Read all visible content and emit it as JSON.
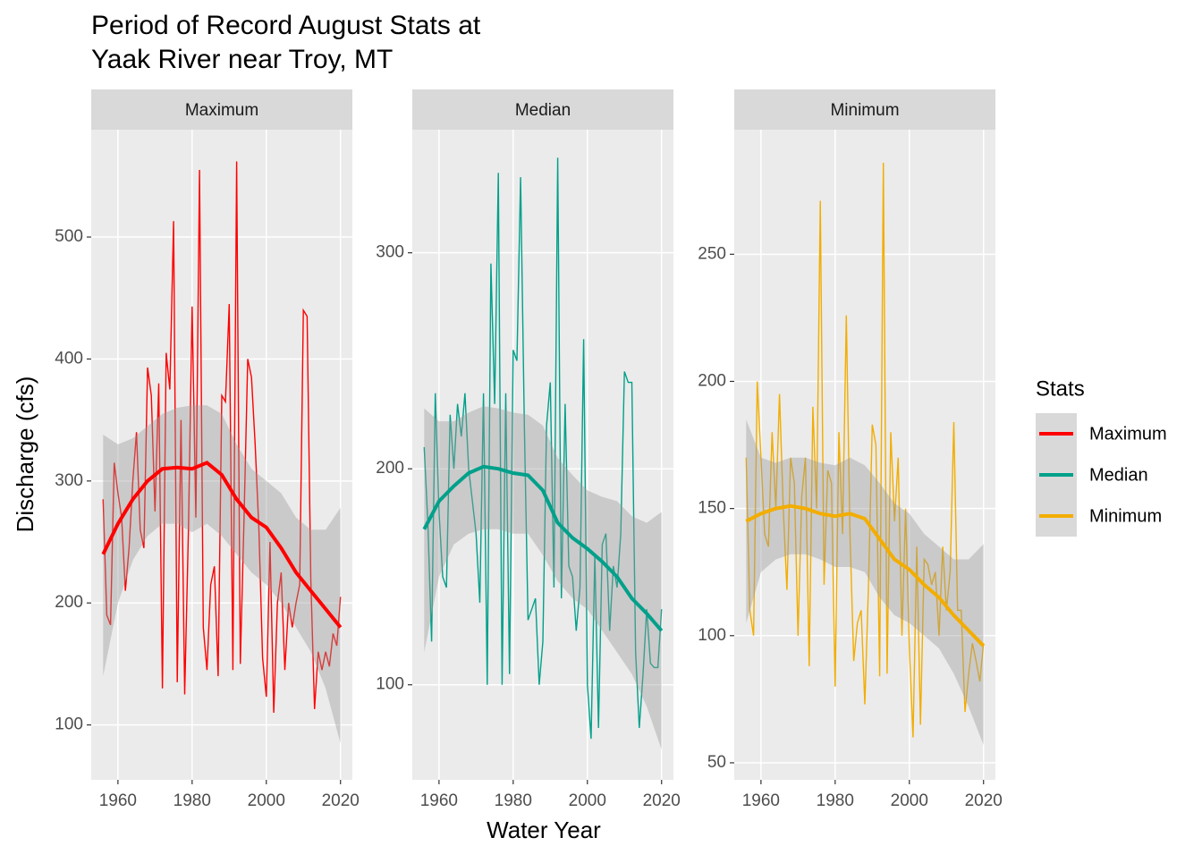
{
  "chart_data": {
    "type": "line",
    "title": [
      "Period of Record August Stats at",
      "Yaak River near Troy, MT"
    ],
    "x_label": "Water Year",
    "y_label": "Discharge (cfs)",
    "legend_title": "Stats",
    "panels": [
      {
        "title": "Maximum",
        "xlim": [
          1952.8,
          2023.2
        ],
        "xticks": [
          1960,
          1980,
          2000,
          2020
        ],
        "ylim": [
          55,
          588
        ],
        "yticks": [
          100,
          200,
          300,
          400,
          500
        ],
        "x": [
          1956,
          1957,
          1958,
          1959,
          1960,
          1961,
          1962,
          1963,
          1964,
          1965,
          1966,
          1967,
          1968,
          1969,
          1970,
          1971,
          1972,
          1973,
          1974,
          1975,
          1976,
          1977,
          1978,
          1979,
          1980,
          1981,
          1982,
          1983,
          1984,
          1985,
          1986,
          1987,
          1988,
          1989,
          1990,
          1991,
          1992,
          1993,
          1994,
          1995,
          1996,
          1997,
          1998,
          1999,
          2000,
          2001,
          2002,
          2003,
          2004,
          2005,
          2006,
          2007,
          2008,
          2009,
          2010,
          2011,
          2012,
          2013,
          2014,
          2015,
          2016,
          2017,
          2018,
          2019,
          2020
        ],
        "series": [
          {
            "name": "Maximum",
            "color": "#ff0000",
            "values": [
              285,
              190,
              182,
              315,
              290,
              270,
              210,
              245,
              300,
              340,
              260,
              245,
              393,
              370,
              275,
              380,
              130,
              405,
              375,
              513,
              135,
              350,
              125,
              260,
              443,
              270,
              555,
              180,
              145,
              215,
              230,
              140,
              370,
              365,
              445,
              145,
              562,
              150,
              270,
              400,
              385,
              330,
              260,
              155,
              123,
              250,
              110,
              200,
              225,
              145,
              200,
              180,
              200,
              215,
              440,
              435,
              220,
              113,
              160,
              145,
              160,
              148,
              175,
              165,
              205
            ]
          }
        ],
        "smooth": {
          "x": [
            1956,
            1960,
            1964,
            1968,
            1972,
            1976,
            1980,
            1984,
            1988,
            1992,
            1996,
            2000,
            2004,
            2008,
            2012,
            2016,
            2020
          ],
          "values": [
            240,
            265,
            285,
            300,
            310,
            311,
            310,
            315,
            305,
            285,
            270,
            262,
            245,
            225,
            210,
            195,
            180
          ],
          "lower": [
            140,
            200,
            235,
            255,
            265,
            265,
            258,
            265,
            255,
            240,
            225,
            215,
            200,
            180,
            160,
            130,
            85
          ],
          "upper": [
            338,
            330,
            335,
            345,
            355,
            360,
            362,
            362,
            355,
            330,
            310,
            300,
            290,
            270,
            260,
            260,
            278
          ]
        }
      },
      {
        "title": "Median",
        "xlim": [
          1952.8,
          2023.2
        ],
        "xticks": [
          1960,
          1980,
          2000,
          2020
        ],
        "ylim": [
          56,
          357
        ],
        "yticks": [
          100,
          200,
          300
        ],
        "x": [
          1956,
          1957,
          1958,
          1959,
          1960,
          1961,
          1962,
          1963,
          1964,
          1965,
          1966,
          1967,
          1968,
          1969,
          1970,
          1971,
          1972,
          1973,
          1974,
          1975,
          1976,
          1977,
          1978,
          1979,
          1980,
          1981,
          1982,
          1983,
          1984,
          1985,
          1986,
          1987,
          1988,
          1989,
          1990,
          1991,
          1992,
          1993,
          1994,
          1995,
          1996,
          1997,
          1998,
          1999,
          2000,
          2001,
          2002,
          2003,
          2004,
          2005,
          2006,
          2007,
          2008,
          2009,
          2010,
          2011,
          2012,
          2013,
          2014,
          2015,
          2016,
          2017,
          2018,
          2019,
          2020
        ],
        "series": [
          {
            "name": "Median",
            "color": "#00a08a",
            "values": [
              210,
              175,
              120,
              235,
              180,
              150,
              145,
              225,
              200,
              230,
              215,
              235,
              200,
              185,
              170,
              138,
              235,
              100,
              295,
              230,
              337,
              100,
              235,
              105,
              255,
              250,
              335,
              220,
              130,
              135,
              140,
              100,
              120,
              220,
              240,
              145,
              344,
              140,
              230,
              155,
              150,
              125,
              145,
              260,
              100,
              75,
              160,
              80,
              165,
              170,
              125,
              155,
              145,
              170,
              245,
              240,
              240,
              115,
              80,
              105,
              135,
              110,
              108,
              108,
              135
            ]
          }
        ],
        "smooth": {
          "x": [
            1956,
            1960,
            1964,
            1968,
            1972,
            1976,
            1980,
            1984,
            1988,
            1992,
            1996,
            2000,
            2004,
            2008,
            2012,
            2016,
            2020
          ],
          "values": [
            172,
            185,
            192,
            198,
            201,
            200,
            198,
            197,
            190,
            175,
            168,
            163,
            157,
            150,
            140,
            133,
            125
          ],
          "lower": [
            115,
            150,
            165,
            170,
            172,
            172,
            170,
            170,
            160,
            148,
            140,
            135,
            125,
            115,
            105,
            90,
            70
          ],
          "upper": [
            228,
            222,
            222,
            226,
            229,
            228,
            226,
            225,
            220,
            205,
            197,
            190,
            187,
            185,
            178,
            175,
            180
          ]
        }
      },
      {
        "title": "Minimum",
        "xlim": [
          1952.8,
          2023.2
        ],
        "xticks": [
          1960,
          1980,
          2000,
          2020
        ],
        "ylim": [
          43.3,
          299
        ],
        "yticks": [
          50,
          100,
          150,
          200,
          250
        ],
        "x": [
          1956,
          1957,
          1958,
          1959,
          1960,
          1961,
          1962,
          1963,
          1964,
          1965,
          1966,
          1967,
          1968,
          1969,
          1970,
          1971,
          1972,
          1973,
          1974,
          1975,
          1976,
          1977,
          1978,
          1979,
          1980,
          1981,
          1982,
          1983,
          1984,
          1985,
          1986,
          1987,
          1988,
          1989,
          1990,
          1991,
          1992,
          1993,
          1994,
          1995,
          1996,
          1997,
          1998,
          1999,
          2000,
          2001,
          2002,
          2003,
          2004,
          2005,
          2006,
          2007,
          2008,
          2009,
          2010,
          2011,
          2012,
          2013,
          2014,
          2015,
          2016,
          2017,
          2018,
          2019,
          2020
        ],
        "series": [
          {
            "name": "Minimum",
            "color": "#f2ad00",
            "values": [
              170,
              110,
              100,
              200,
              170,
              140,
              135,
              180,
              150,
              195,
              150,
              118,
              170,
              160,
              100,
              155,
              170,
              88,
              190,
              150,
              271,
              120,
              165,
              160,
              80,
              180,
              140,
              226,
              140,
              90,
              105,
              110,
              73,
              120,
              183,
              175,
              84,
              286,
              85,
              180,
              145,
              170,
              100,
              150,
              95,
              60,
              135,
              65,
              130,
              128,
              120,
              125,
              100,
              135,
              110,
              125,
              184,
              110,
              110,
              70,
              85,
              97,
              90,
              82,
              97
            ]
          }
        ],
        "smooth": {
          "x": [
            1956,
            1960,
            1964,
            1968,
            1972,
            1976,
            1980,
            1984,
            1988,
            1992,
            1996,
            2000,
            2004,
            2008,
            2012,
            2016,
            2020
          ],
          "values": [
            145,
            148,
            150,
            151,
            150,
            148,
            147,
            148,
            146,
            138,
            130,
            126,
            120,
            115,
            108,
            102,
            96
          ],
          "lower": [
            105,
            125,
            130,
            132,
            132,
            130,
            127,
            127,
            125,
            115,
            108,
            105,
            100,
            95,
            85,
            72,
            57
          ],
          "upper": [
            185,
            170,
            168,
            170,
            170,
            168,
            167,
            170,
            167,
            160,
            152,
            148,
            140,
            135,
            130,
            130,
            136
          ]
        }
      }
    ]
  }
}
